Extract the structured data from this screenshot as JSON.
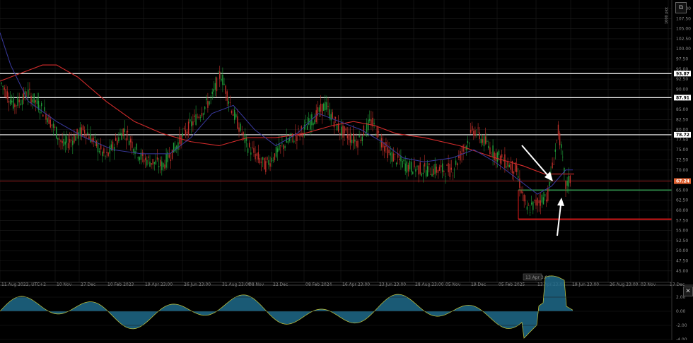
{
  "price_axis": {
    "ticks": [
      "110.00",
      "107.50",
      "105.00",
      "102.50",
      "100.00",
      "97.50",
      "95.00",
      "92.50",
      "90.00",
      "87.50",
      "85.00",
      "82.50",
      "80.00",
      "77.50",
      "75.00",
      "72.50",
      "70.00",
      "67.50",
      "65.00",
      "62.50",
      "60.00",
      "57.50",
      "55.00",
      "52.50",
      "50.00",
      "47.50",
      "45.00"
    ],
    "vertical_label": "1000 plot"
  },
  "time_axis": {
    "ticks": [
      "11 Aug 2022, UTC+2",
      "10 Nov",
      "27 Dec",
      "10 Feb 2023",
      "19 Apr 23:00",
      "26 Jun 23:00",
      "31 Aug 23:00",
      "08 Nov",
      "22 Dec",
      "08 Feb 2024",
      "16 Apr 23:00",
      "23 Jun 23:00",
      "28 Aug 23:00",
      "05 Nov",
      "19 Dec",
      "05 Feb 2025",
      "13 Apr 23:00",
      "19 Jun 23:00",
      "26 Aug 23:00",
      "03 Nov",
      "17 Dec"
    ],
    "crosshair_label": "13 Apr 3:00"
  },
  "levels": [
    {
      "price": "93.87",
      "color": "#ffffff"
    },
    {
      "price": "87.91",
      "color": "#ffffff"
    },
    {
      "price": "78.72",
      "color": "#ffffff"
    },
    {
      "price": "67.24",
      "color": "#e06030"
    }
  ],
  "horizontal_lines": {
    "white": [
      93.87,
      87.91,
      78.72
    ],
    "red_full": 67.24,
    "green_segment": 65.0,
    "red_segment": 57.8
  },
  "oscillator": {
    "ticks": [
      "2.00",
      "0.00",
      "-2.00",
      "-4.00"
    ]
  },
  "icons": {
    "corner": "external-link-icon",
    "close": "close-icon"
  },
  "colors": {
    "background": "#000000",
    "grid": "#1c1c1c",
    "candle_up": "#1f9e3a",
    "candle_down": "#c0302a",
    "ma_long": "#d22b2b",
    "ma_short": "#3a3aa0",
    "level_white": "#ffffff",
    "level_green": "#2e8b4a",
    "osc_fill": "#1e6a8a",
    "osc_line": "#c8c83a"
  }
}
